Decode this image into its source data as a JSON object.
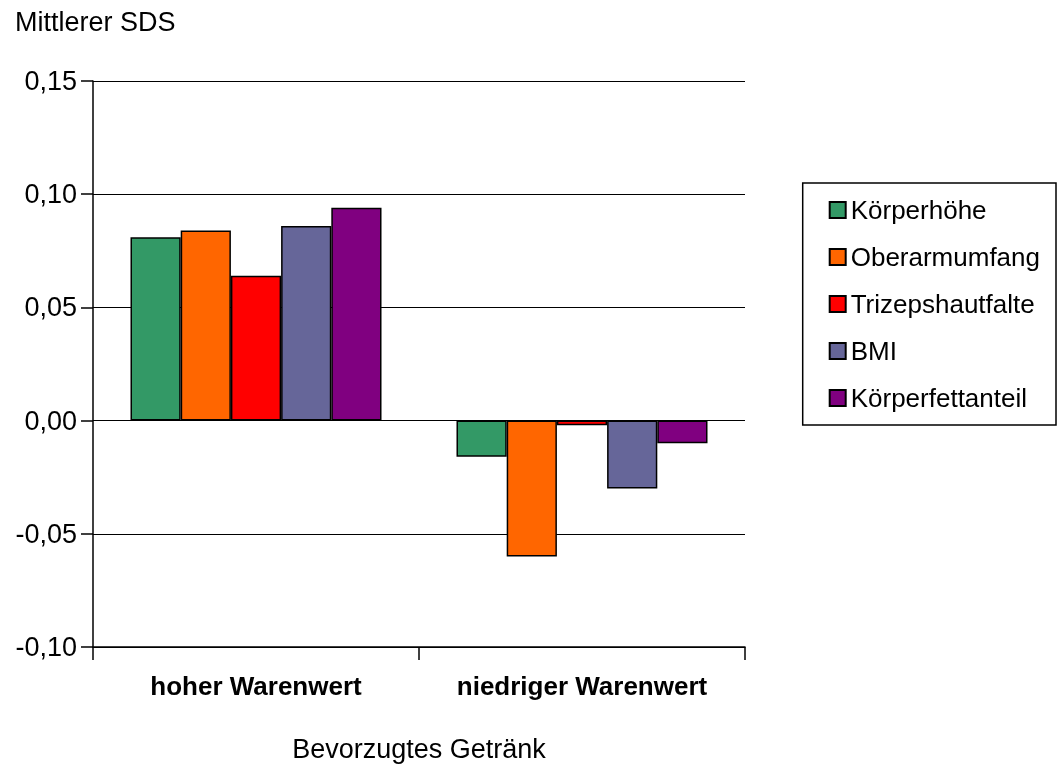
{
  "chart_data": {
    "type": "bar",
    "xlabel": "Bevorzugtes Getränk",
    "ylabel": "Mittlerer SDS",
    "categories": [
      "hoher Warenwert",
      "niedriger Warenwert"
    ],
    "series": [
      {
        "name": "Körperhöhe",
        "color": "#339966",
        "values": [
          0.081,
          -0.016
        ]
      },
      {
        "name": "Oberarmumfang",
        "color": "#ff6600",
        "values": [
          0.084,
          -0.06
        ]
      },
      {
        "name": "Trizepshautfalte",
        "color": "#ff0000",
        "values": [
          0.064,
          -0.002
        ]
      },
      {
        "name": "BMI",
        "color": "#666699",
        "values": [
          0.086,
          -0.03
        ]
      },
      {
        "name": "Körperfettanteil",
        "color": "#800080",
        "values": [
          0.094,
          -0.01
        ]
      }
    ],
    "ylim": [
      -0.1,
      0.15
    ],
    "yticks": [
      {
        "value": -0.1,
        "label": "-0,10"
      },
      {
        "value": -0.05,
        "label": "-0,05"
      },
      {
        "value": 0,
        "label": "0,00"
      },
      {
        "value": 0.05,
        "label": "0,05"
      },
      {
        "value": 0.1,
        "label": "0,10"
      },
      {
        "value": 0.15,
        "label": "0,15"
      }
    ],
    "grid": "y",
    "legend": "right"
  }
}
